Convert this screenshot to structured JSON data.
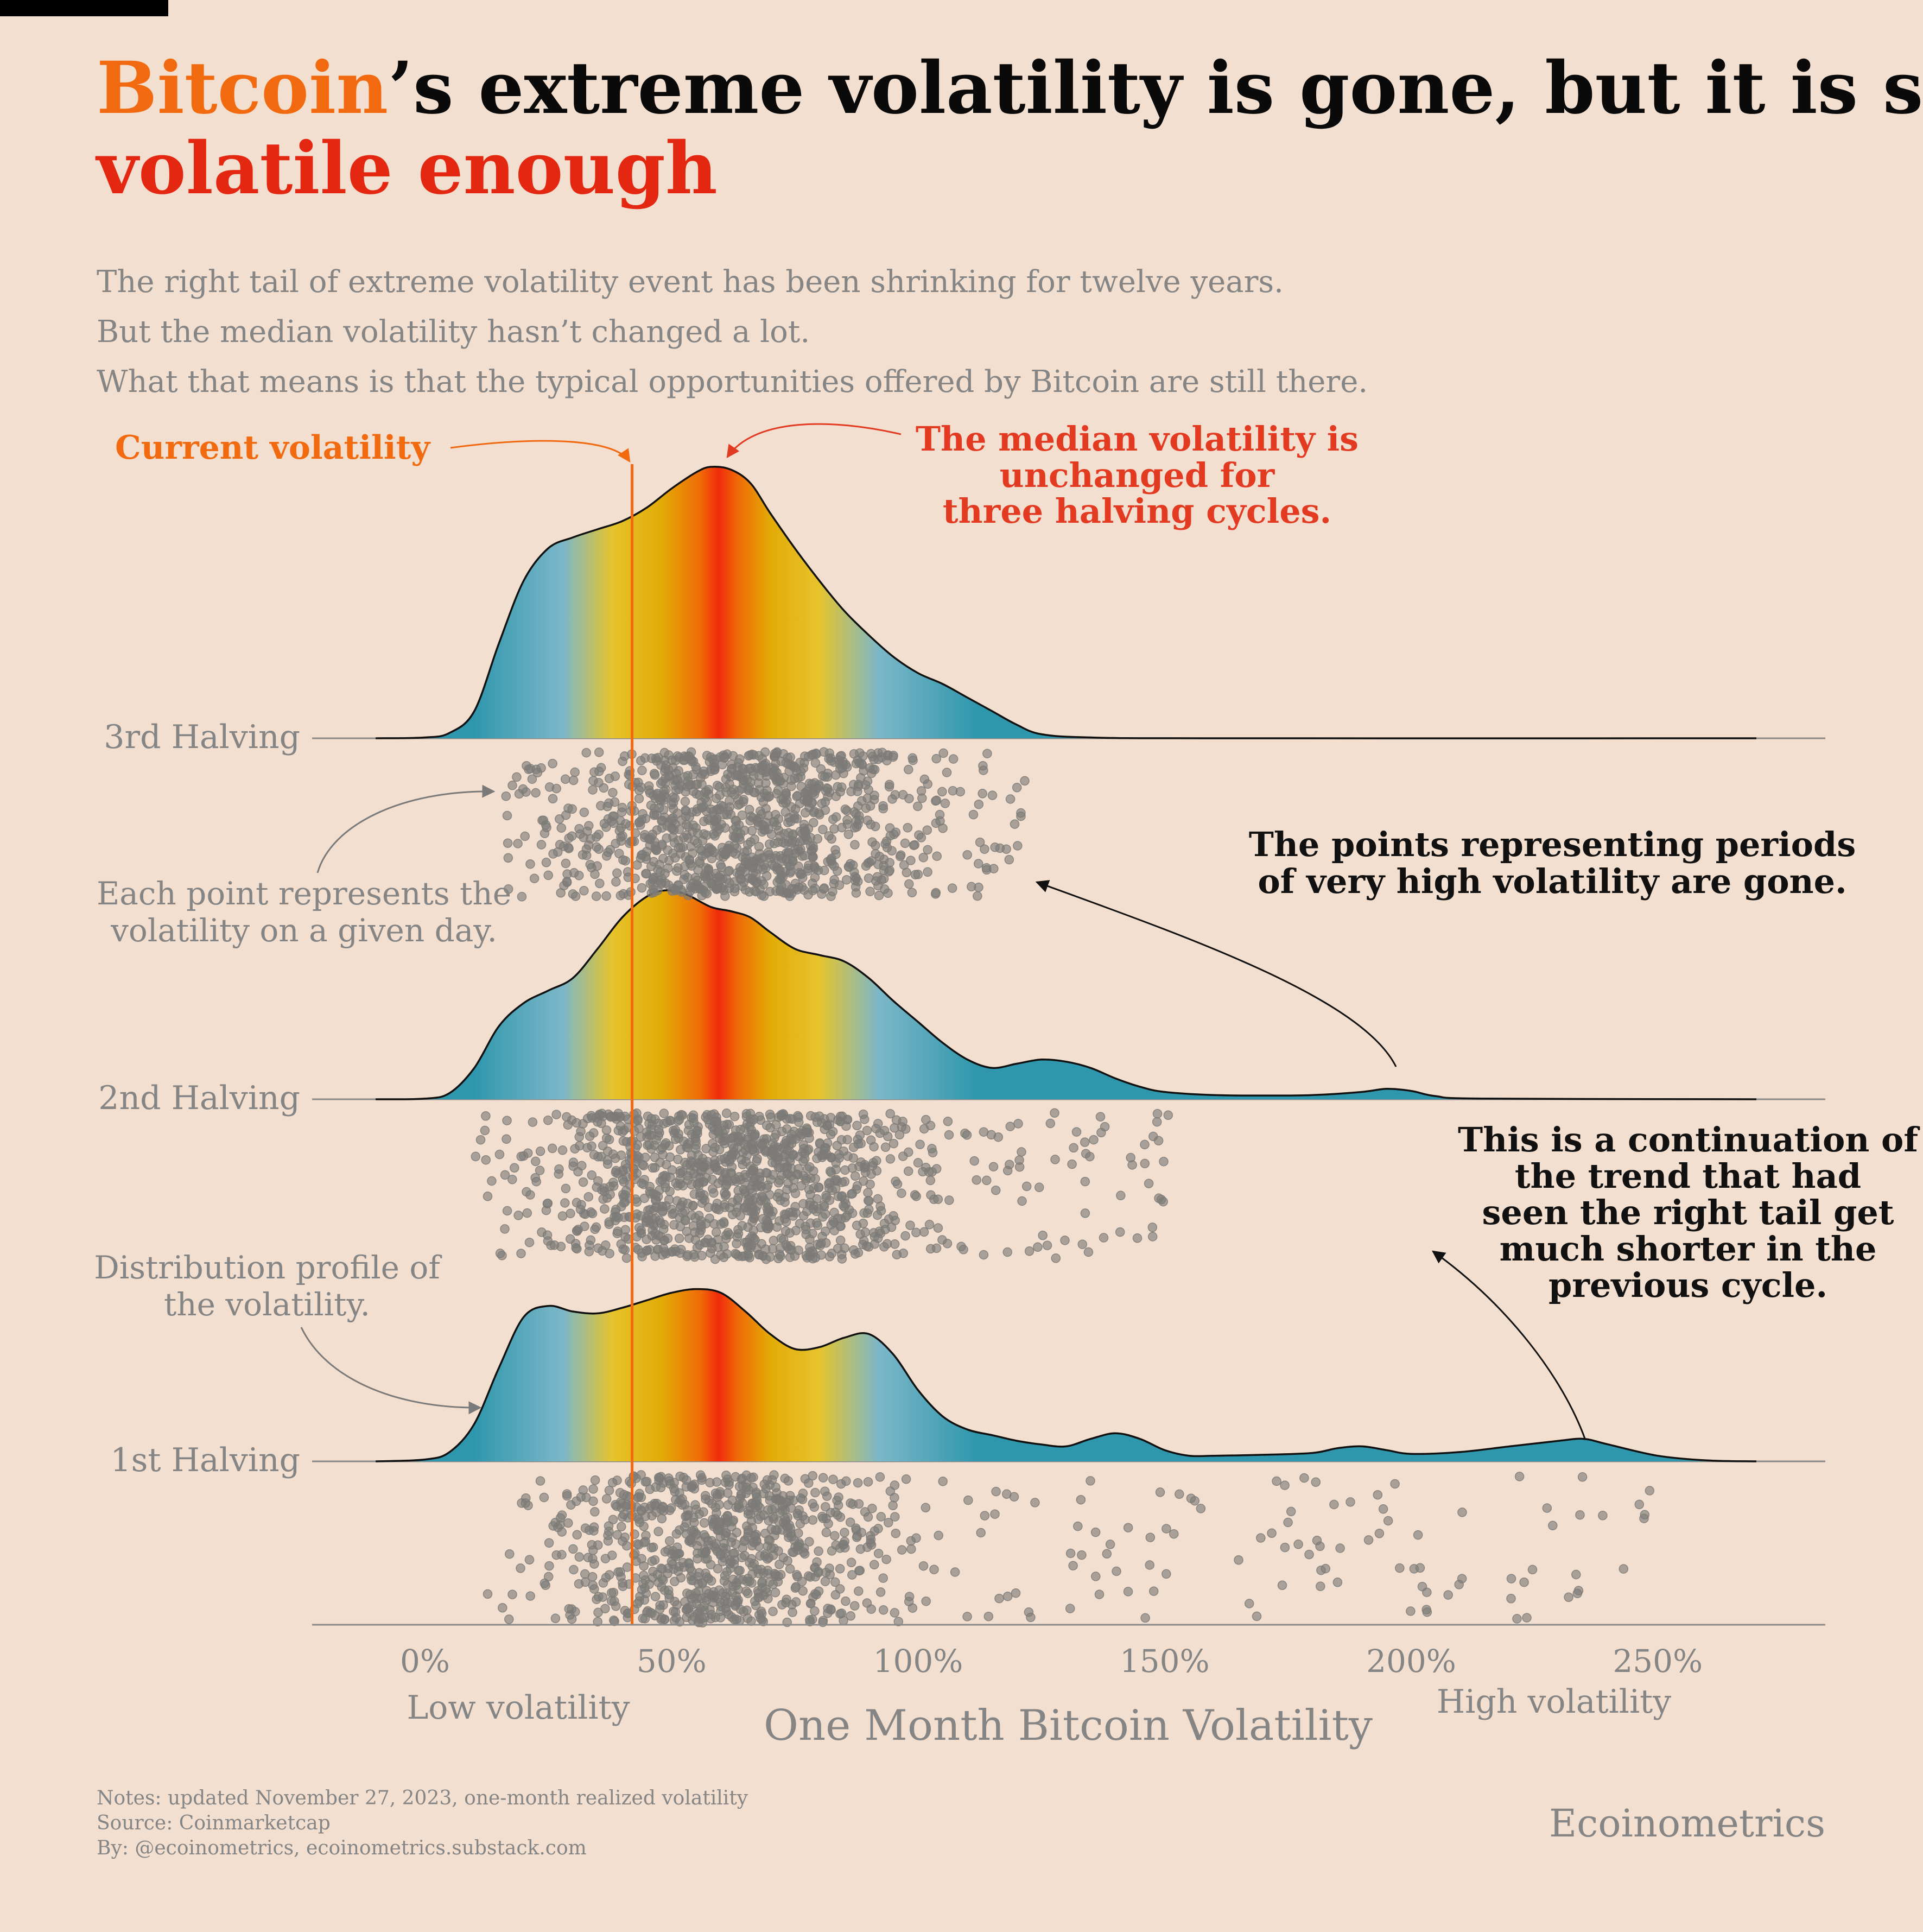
{
  "title": {
    "highlight": "Bitcoin",
    "rest_line1": "’s extreme volatility is gone, but it is still",
    "line2": "volatile enough"
  },
  "subtitle": [
    "The right tail of extreme volatility event has been shrinking for twelve years.",
    "But the median volatility hasn’t changed a lot.",
    "What that means is that the typical opportunities offered by Bitcoin are still there."
  ],
  "annotations": {
    "current_volatility": "Current volatility",
    "median": [
      "The median volatility is",
      "unchanged for",
      "three halving cycles."
    ],
    "points": [
      "Each point represents the",
      "volatility on a given day."
    ],
    "distribution": [
      "Distribution profile of",
      "the volatility."
    ],
    "high_points": [
      "The points representing periods",
      "of very high volatility are gone."
    ],
    "continuation": [
      "This is a continuation of",
      "the trend that had",
      "seen the right tail get",
      "much shorter in the",
      "previous cycle."
    ]
  },
  "colors": {
    "background": "#f2dfcf",
    "bitcoin_orange": "#f26a10",
    "headline_red": "#e42710",
    "annotation_red": "#e33a22",
    "teal": "#2f97ad",
    "light_blue": "#7cb7c8",
    "gold": "#e6c42c",
    "amber": "#e2ab06",
    "median_red": "#f02a0a",
    "dot": "#7d7a78",
    "axis": "#8a8a8a",
    "muted_text": "#858585"
  },
  "chart_data": {
    "type": "ridgeline density with jittered points",
    "xlabel": "One Month Bitcoin Volatility",
    "x_range": [
      -0.1,
      2.7
    ],
    "x_ticks": [
      0,
      0.5,
      1.0,
      1.5,
      2.0,
      2.5
    ],
    "x_tick_labels": [
      "0%",
      "50%",
      "100%",
      "150%",
      "200%",
      "250%"
    ],
    "x_annotations": {
      "low": "Low volatility",
      "high": "High volatility"
    },
    "current_volatility": 0.42,
    "gradient_stops": [
      {
        "x": 0.1,
        "color": "#2f97ad"
      },
      {
        "x": 0.28,
        "color": "#7cb7c8"
      },
      {
        "x": 0.38,
        "color": "#e6c42c"
      },
      {
        "x": 0.48,
        "color": "#e2ab06"
      },
      {
        "x": 0.56,
        "color": "#f06a08"
      },
      {
        "x": 0.595,
        "color": "#f02a0a"
      },
      {
        "x": 0.635,
        "color": "#f06a08"
      },
      {
        "x": 0.7,
        "color": "#e2ab06"
      },
      {
        "x": 0.8,
        "color": "#e6c42c"
      },
      {
        "x": 0.92,
        "color": "#7cb7c8"
      },
      {
        "x": 1.12,
        "color": "#2f97ad"
      }
    ],
    "series": [
      {
        "name": "3rd Halving",
        "median": 0.585,
        "density": [
          [
            -0.1,
            0
          ],
          [
            0,
            0.003
          ],
          [
            0.05,
            0.02
          ],
          [
            0.1,
            0.1
          ],
          [
            0.15,
            0.35
          ],
          [
            0.2,
            0.58
          ],
          [
            0.25,
            0.7
          ],
          [
            0.3,
            0.74
          ],
          [
            0.35,
            0.77
          ],
          [
            0.4,
            0.8
          ],
          [
            0.45,
            0.85
          ],
          [
            0.5,
            0.92
          ],
          [
            0.55,
            0.98
          ],
          [
            0.58,
            1.0
          ],
          [
            0.62,
            0.99
          ],
          [
            0.66,
            0.94
          ],
          [
            0.7,
            0.83
          ],
          [
            0.75,
            0.7
          ],
          [
            0.8,
            0.58
          ],
          [
            0.85,
            0.47
          ],
          [
            0.9,
            0.38
          ],
          [
            0.95,
            0.3
          ],
          [
            1.0,
            0.24
          ],
          [
            1.05,
            0.2
          ],
          [
            1.1,
            0.15
          ],
          [
            1.15,
            0.1
          ],
          [
            1.2,
            0.05
          ],
          [
            1.25,
            0.015
          ],
          [
            1.35,
            0.003
          ],
          [
            1.6,
            0
          ],
          [
            2.7,
            0
          ]
        ],
        "points": {
          "min": 0.16,
          "max": 1.22,
          "count": 1150,
          "peak": 0.58
        }
      },
      {
        "name": "2nd Halving",
        "median": 0.655,
        "density": [
          [
            -0.1,
            0
          ],
          [
            0,
            0.003
          ],
          [
            0.05,
            0.03
          ],
          [
            0.1,
            0.15
          ],
          [
            0.15,
            0.35
          ],
          [
            0.2,
            0.46
          ],
          [
            0.25,
            0.52
          ],
          [
            0.3,
            0.58
          ],
          [
            0.35,
            0.72
          ],
          [
            0.4,
            0.87
          ],
          [
            0.45,
            0.97
          ],
          [
            0.49,
            1.0
          ],
          [
            0.53,
            0.98
          ],
          [
            0.58,
            0.92
          ],
          [
            0.62,
            0.9
          ],
          [
            0.66,
            0.87
          ],
          [
            0.7,
            0.8
          ],
          [
            0.75,
            0.72
          ],
          [
            0.8,
            0.69
          ],
          [
            0.85,
            0.66
          ],
          [
            0.9,
            0.58
          ],
          [
            0.95,
            0.47
          ],
          [
            1.0,
            0.37
          ],
          [
            1.05,
            0.27
          ],
          [
            1.1,
            0.19
          ],
          [
            1.15,
            0.15
          ],
          [
            1.2,
            0.17
          ],
          [
            1.25,
            0.19
          ],
          [
            1.3,
            0.18
          ],
          [
            1.35,
            0.15
          ],
          [
            1.4,
            0.1
          ],
          [
            1.45,
            0.06
          ],
          [
            1.5,
            0.035
          ],
          [
            1.6,
            0.02
          ],
          [
            1.7,
            0.018
          ],
          [
            1.8,
            0.02
          ],
          [
            1.9,
            0.035
          ],
          [
            1.95,
            0.05
          ],
          [
            2.0,
            0.04
          ],
          [
            2.05,
            0.015
          ],
          [
            2.15,
            0.003
          ],
          [
            2.7,
            0
          ]
        ],
        "points": {
          "min": 0.1,
          "max": 1.52,
          "count": 1200,
          "peak": 0.6
        }
      },
      {
        "name": "1st Halving",
        "median": 0.61,
        "density": [
          [
            -0.1,
            0
          ],
          [
            0,
            0.01
          ],
          [
            0.05,
            0.05
          ],
          [
            0.1,
            0.2
          ],
          [
            0.15,
            0.5
          ],
          [
            0.2,
            0.77
          ],
          [
            0.25,
            0.83
          ],
          [
            0.3,
            0.8
          ],
          [
            0.35,
            0.79
          ],
          [
            0.4,
            0.82
          ],
          [
            0.45,
            0.86
          ],
          [
            0.5,
            0.9
          ],
          [
            0.55,
            0.92
          ],
          [
            0.6,
            0.9
          ],
          [
            0.65,
            0.8
          ],
          [
            0.7,
            0.68
          ],
          [
            0.75,
            0.6
          ],
          [
            0.8,
            0.61
          ],
          [
            0.85,
            0.66
          ],
          [
            0.9,
            0.68
          ],
          [
            0.95,
            0.57
          ],
          [
            1.0,
            0.38
          ],
          [
            1.05,
            0.24
          ],
          [
            1.1,
            0.17
          ],
          [
            1.15,
            0.14
          ],
          [
            1.2,
            0.11
          ],
          [
            1.25,
            0.09
          ],
          [
            1.3,
            0.08
          ],
          [
            1.35,
            0.12
          ],
          [
            1.4,
            0.15
          ],
          [
            1.45,
            0.12
          ],
          [
            1.5,
            0.06
          ],
          [
            1.55,
            0.03
          ],
          [
            1.6,
            0.03
          ],
          [
            1.7,
            0.035
          ],
          [
            1.8,
            0.045
          ],
          [
            1.85,
            0.07
          ],
          [
            1.9,
            0.08
          ],
          [
            1.95,
            0.06
          ],
          [
            2.0,
            0.04
          ],
          [
            2.1,
            0.05
          ],
          [
            2.2,
            0.08
          ],
          [
            2.3,
            0.11
          ],
          [
            2.35,
            0.12
          ],
          [
            2.4,
            0.09
          ],
          [
            2.5,
            0.03
          ],
          [
            2.6,
            0.005
          ],
          [
            2.7,
            0
          ]
        ],
        "points": {
          "min": 0.12,
          "max": 2.5,
          "count": 950,
          "peak": 0.55
        }
      }
    ]
  },
  "footer": {
    "notes": "Notes: updated November 27, 2023, one-month realized volatility",
    "source": "Source: Coinmarketcap",
    "by": "By: @ecoinometrics, ecoinometrics.substack.com",
    "brand": "Ecoinometrics"
  }
}
